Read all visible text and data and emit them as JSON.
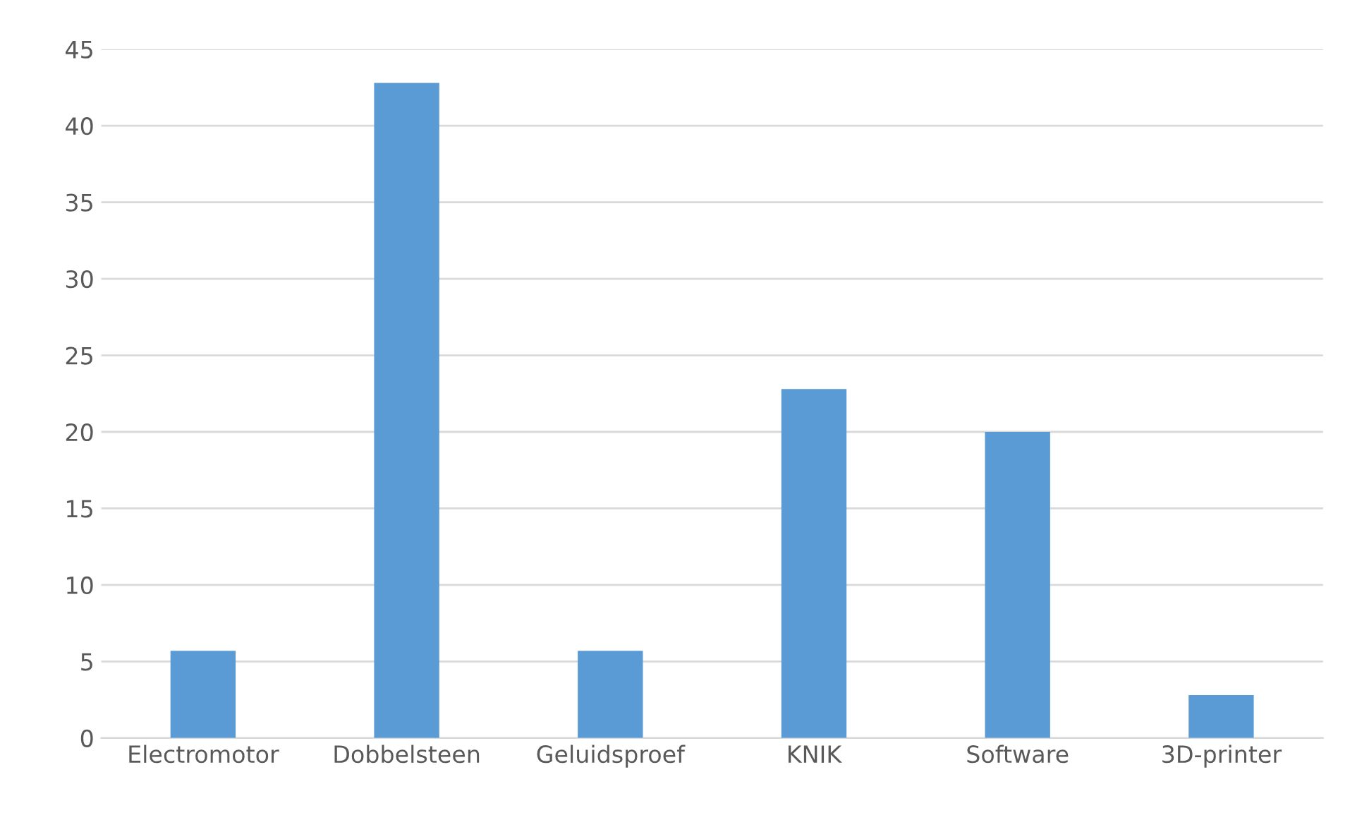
{
  "chart_data": {
    "type": "bar",
    "categories": [
      "Electromotor",
      "Dobbelsteen",
      "Geluidsproef",
      "KNIK",
      "Software",
      "3D-printer"
    ],
    "values": [
      5.7,
      42.8,
      5.7,
      22.8,
      20,
      2.8
    ],
    "color": "#5b9bd5",
    "ylim": [
      0,
      45
    ],
    "yticks": [
      0,
      5,
      10,
      15,
      20,
      25,
      30,
      35,
      40,
      45
    ],
    "grid": "y",
    "legend": false
  }
}
